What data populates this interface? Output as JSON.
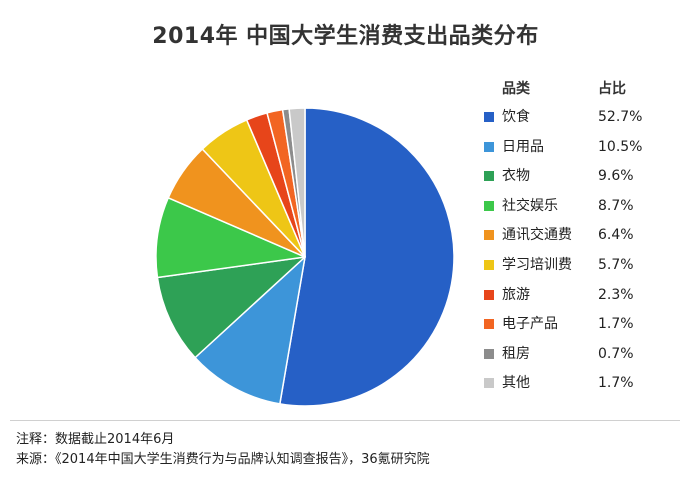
{
  "chart_data": {
    "type": "pie",
    "title": "2014年 中国大学生消费支出品类分布",
    "legend": {
      "header_category": "品类",
      "header_share": "占比",
      "placement": "right"
    },
    "slices": [
      {
        "label": "饮食",
        "value": 52.7,
        "value_label": "52.7%",
        "color": "#2660c6"
      },
      {
        "label": "日用品",
        "value": 10.5,
        "value_label": "10.5%",
        "color": "#3d95d9"
      },
      {
        "label": "衣物",
        "value": 9.6,
        "value_label": "9.6%",
        "color": "#2ea156"
      },
      {
        "label": "社交娱乐",
        "value": 8.7,
        "value_label": "8.7%",
        "color": "#3cc84a"
      },
      {
        "label": "通讯交通费",
        "value": 6.4,
        "value_label": "6.4%",
        "color": "#f0931e"
      },
      {
        "label": "学习培训费",
        "value": 5.7,
        "value_label": "5.7%",
        "color": "#eec616"
      },
      {
        "label": "旅游",
        "value": 2.3,
        "value_label": "2.3%",
        "color": "#e7451a"
      },
      {
        "label": "电子产品",
        "value": 1.7,
        "value_label": "1.7%",
        "color": "#f26522"
      },
      {
        "label": "租房",
        "value": 0.7,
        "value_label": "0.7%",
        "color": "#8c8c8c"
      },
      {
        "label": "其他",
        "value": 1.7,
        "value_label": "1.7%",
        "color": "#c9c9c9"
      }
    ]
  },
  "footer": {
    "note": "注释：数据截止2014年6月",
    "source": "来源：《2014年中国大学生消费行为与品牌认知调查报告》，36氪研究院"
  }
}
